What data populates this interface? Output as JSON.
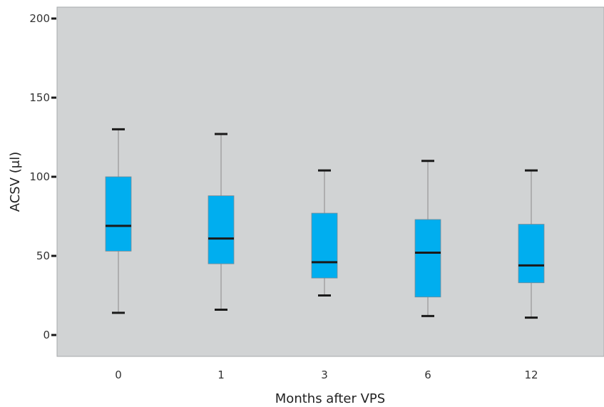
{
  "chart_data": {
    "type": "box",
    "xlabel": "Months after VPS",
    "ylabel": "ACSV (μl)",
    "ylim": [
      0,
      200
    ],
    "yticks": [
      0,
      50,
      100,
      150,
      200
    ],
    "categories": [
      "0",
      "1",
      "3",
      "6",
      "12"
    ],
    "boxes": [
      {
        "category": "0",
        "whisker_low": 14,
        "q1": 53,
        "median": 69,
        "q3": 100,
        "whisker_high": 130
      },
      {
        "category": "1",
        "whisker_low": 16,
        "q1": 45,
        "median": 61,
        "q3": 88,
        "whisker_high": 127
      },
      {
        "category": "3",
        "whisker_low": 25,
        "q1": 36,
        "median": 46,
        "q3": 77,
        "whisker_high": 104
      },
      {
        "category": "6",
        "whisker_low": 12,
        "q1": 24,
        "median": 52,
        "q3": 73,
        "whisker_high": 110
      },
      {
        "category": "12",
        "whisker_low": 11,
        "q1": 33,
        "median": 44,
        "q3": 70,
        "whisker_high": 104
      }
    ],
    "grid": false,
    "colors": {
      "panel_background": "#d1d3d4",
      "box_fill": "#00aeef",
      "median_line": "#1a1a1a",
      "whisker_line": "#8a8a8a",
      "cap": "#1a1a1a"
    }
  }
}
